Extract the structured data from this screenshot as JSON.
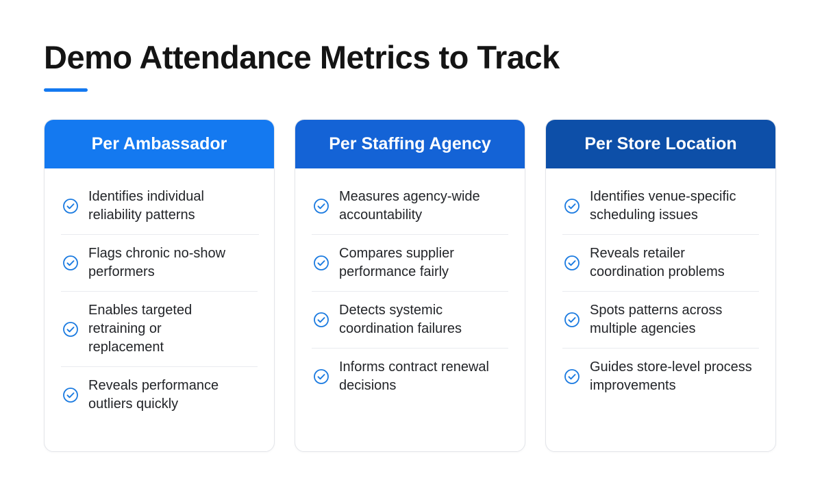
{
  "title": "Demo Attendance Metrics to Track",
  "colors": {
    "accent": "#1479f0",
    "check": "#1a7ae0",
    "header_1": "#1479f0",
    "header_2": "#1463d6",
    "header_3": "#0d4fa8"
  },
  "icon": "check-circle-icon",
  "columns": [
    {
      "title": "Per Ambassador",
      "items": [
        "Identifies individual reliability patterns",
        "Flags chronic no-show performers",
        "Enables targeted retraining or replacement",
        "Reveals performance outliers quickly"
      ]
    },
    {
      "title": "Per Staffing Agency",
      "items": [
        "Measures agency-wide accountability",
        "Compares supplier performance fairly",
        "Detects systemic coordination failures",
        "Informs contract renewal decisions"
      ]
    },
    {
      "title": "Per Store Location",
      "items": [
        "Identifies venue-specific scheduling issues",
        "Reveals retailer coordination problems",
        "Spots patterns across multiple agencies",
        "Guides store-level process improvements"
      ]
    }
  ]
}
